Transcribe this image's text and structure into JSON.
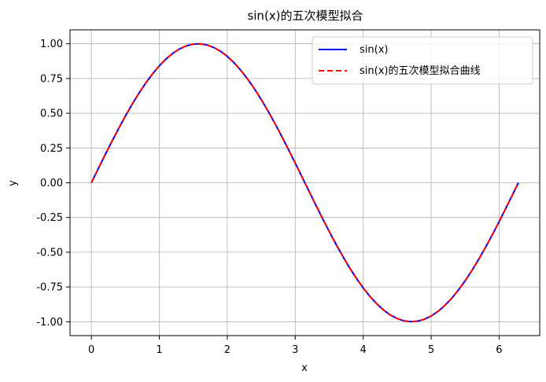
{
  "chart_data": {
    "type": "line",
    "title": "sin(x)的五次模型拟合",
    "xlabel": "x",
    "ylabel": "y",
    "xlim": [
      -0.314,
      6.597
    ],
    "ylim": [
      -1.1,
      1.1
    ],
    "xticks": [
      0,
      1,
      2,
      3,
      4,
      5,
      6
    ],
    "xtick_labels": [
      "0",
      "1",
      "2",
      "3",
      "4",
      "5",
      "6"
    ],
    "yticks": [
      -1.0,
      -0.75,
      -0.5,
      -0.25,
      0.0,
      0.25,
      0.5,
      0.75,
      1.0
    ],
    "ytick_labels": [
      "-1.00",
      "-0.75",
      "-0.50",
      "-0.25",
      "0.00",
      "0.25",
      "0.50",
      "0.75",
      "1.00"
    ],
    "grid": true,
    "legend_position": "top-right",
    "series": [
      {
        "name": "sin(x)",
        "color": "#0000ff",
        "style": "solid",
        "x": [
          0,
          0.1,
          0.2,
          0.3,
          0.4,
          0.5,
          0.6,
          0.7,
          0.8,
          0.9,
          1.0,
          1.1,
          1.2,
          1.3,
          1.4,
          1.5,
          1.6,
          1.7,
          1.8,
          1.9,
          2.0,
          2.1,
          2.2,
          2.3,
          2.4,
          2.5,
          2.6,
          2.7,
          2.8,
          2.9,
          3.0,
          3.1,
          3.2,
          3.3,
          3.4,
          3.5,
          3.6,
          3.7,
          3.8,
          3.9,
          4.0,
          4.1,
          4.2,
          4.3,
          4.4,
          4.5,
          4.6,
          4.7,
          4.8,
          4.9,
          5.0,
          5.1,
          5.2,
          5.3,
          5.4,
          5.5,
          5.6,
          5.7,
          5.8,
          5.9,
          6.0,
          6.1,
          6.2,
          6.283
        ],
        "y": [
          0.0,
          0.0998,
          0.1987,
          0.2955,
          0.3894,
          0.4794,
          0.5646,
          0.6442,
          0.7174,
          0.7833,
          0.8415,
          0.8912,
          0.932,
          0.9636,
          0.9854,
          0.9975,
          0.9996,
          0.9917,
          0.9738,
          0.9463,
          0.9093,
          0.8632,
          0.8085,
          0.7457,
          0.6755,
          0.5985,
          0.5155,
          0.4274,
          0.335,
          0.2392,
          0.1411,
          0.0416,
          -0.0584,
          -0.1577,
          -0.2555,
          -0.3508,
          -0.4425,
          -0.5298,
          -0.6119,
          -0.6878,
          -0.7568,
          -0.8183,
          -0.8716,
          -0.9162,
          -0.9516,
          -0.9775,
          -0.9937,
          -0.9999,
          -0.9962,
          -0.9825,
          -0.9589,
          -0.9258,
          -0.8835,
          -0.8323,
          -0.7728,
          -0.7055,
          -0.6313,
          -0.5507,
          -0.4646,
          -0.3739,
          -0.2794,
          -0.1822,
          -0.0831,
          0.0
        ]
      },
      {
        "name": "sin(x)的五次模型拟合曲线",
        "color": "#ff0000",
        "style": "dashed",
        "x": [
          0,
          0.1,
          0.2,
          0.3,
          0.4,
          0.5,
          0.6,
          0.7,
          0.8,
          0.9,
          1.0,
          1.1,
          1.2,
          1.3,
          1.4,
          1.5,
          1.6,
          1.7,
          1.8,
          1.9,
          2.0,
          2.1,
          2.2,
          2.3,
          2.4,
          2.5,
          2.6,
          2.7,
          2.8,
          2.9,
          3.0,
          3.1,
          3.2,
          3.3,
          3.4,
          3.5,
          3.6,
          3.7,
          3.8,
          3.9,
          4.0,
          4.1,
          4.2,
          4.3,
          4.4,
          4.5,
          4.6,
          4.7,
          4.8,
          4.9,
          5.0,
          5.1,
          5.2,
          5.3,
          5.4,
          5.5,
          5.6,
          5.7,
          5.8,
          5.9,
          6.0,
          6.1,
          6.2,
          6.283
        ],
        "y": [
          0.0,
          0.0998,
          0.1987,
          0.2955,
          0.3894,
          0.4794,
          0.5646,
          0.6442,
          0.7174,
          0.7833,
          0.8415,
          0.8912,
          0.932,
          0.9636,
          0.9854,
          0.9975,
          0.9996,
          0.9917,
          0.9738,
          0.9463,
          0.9093,
          0.8632,
          0.8085,
          0.7457,
          0.6755,
          0.5985,
          0.5155,
          0.4274,
          0.335,
          0.2392,
          0.1411,
          0.0416,
          -0.0584,
          -0.1577,
          -0.2555,
          -0.3508,
          -0.4425,
          -0.5298,
          -0.6119,
          -0.6878,
          -0.7568,
          -0.8183,
          -0.8716,
          -0.9162,
          -0.9516,
          -0.9775,
          -0.9937,
          -0.9999,
          -0.9962,
          -0.9825,
          -0.9589,
          -0.9258,
          -0.8835,
          -0.8323,
          -0.7728,
          -0.7055,
          -0.6313,
          -0.5507,
          -0.4646,
          -0.3739,
          -0.2794,
          -0.1822,
          -0.0831,
          0.0
        ]
      }
    ]
  }
}
